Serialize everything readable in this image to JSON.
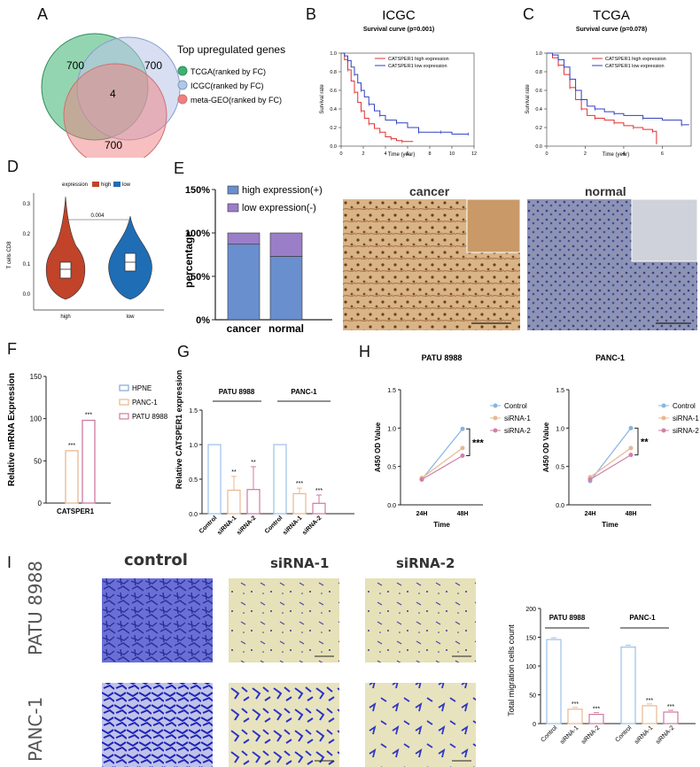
{
  "panels": {
    "A": {
      "letter": "A",
      "legend_title": "Top upregulated genes",
      "legend": [
        {
          "label": "TCGA(ranked by FC)",
          "color": "#3cb371"
        },
        {
          "label": "ICGC(ranked by FC)",
          "color": "#9fb7d8"
        },
        {
          "label": "meta-GEO(ranked by FC)",
          "color": "#f08080"
        }
      ],
      "venn": {
        "n1": "700",
        "n2": "700",
        "n3": "700",
        "center": "4"
      }
    },
    "B": {
      "letter": "B",
      "title": "ICGC",
      "subtitle": "Survival curve (p=0.001)",
      "xlabel": "Time (year)",
      "ylabel": "Survival rate",
      "legend": [
        "CATSPER1 high expression",
        "CATSPER1 low expression"
      ],
      "xticks": [
        "0",
        "2",
        "4",
        "6",
        "8",
        "10",
        "12"
      ],
      "yticks": [
        "0.0",
        "0.2",
        "0.4",
        "0.6",
        "0.8",
        "1.0"
      ]
    },
    "C": {
      "letter": "C",
      "title": "TCGA",
      "subtitle": "Survival curve (p=0.078)",
      "xlabel": "Time (year)",
      "ylabel": "Survival rate",
      "legend": [
        "CATSPER1 high expression",
        "CATSPER1 low expression"
      ],
      "xticks": [
        "0",
        "2",
        "4",
        "6"
      ],
      "yticks": [
        "0.0",
        "0.2",
        "0.4",
        "0.6",
        "0.8",
        "1.0"
      ]
    },
    "D": {
      "letter": "D",
      "legend_title": "expression",
      "legend": [
        "high",
        "low"
      ],
      "ylabel": "T cells CD8",
      "pval": "0.004",
      "xticks": [
        "high",
        "low"
      ],
      "yticks": [
        "0.0",
        "0.1",
        "0.2",
        "0.3"
      ]
    },
    "E": {
      "letter": "E",
      "legend": [
        "high expression(+)",
        "low expression(-)"
      ],
      "ylabel": "percentage",
      "yticks": [
        "0%",
        "50%",
        "100%",
        "150%"
      ],
      "categories": [
        "cancer",
        "normal"
      ],
      "ihc_titles": [
        "cancer",
        "normal"
      ]
    },
    "F": {
      "letter": "F",
      "ylabel": "Relative  mRNA Expression",
      "xlabel": "CATSPER1",
      "legend": [
        "HPNE",
        "PANC-1",
        "PATU 8988"
      ],
      "yticks": [
        "0",
        "50",
        "100",
        "150"
      ],
      "sig": [
        "***",
        "***"
      ]
    },
    "G": {
      "letter": "G",
      "ylabel": "Relative CATSPER1 expression",
      "groups": [
        "PATU 8988",
        "PANC-1"
      ],
      "xticks": [
        "Control",
        "siRNA-1",
        "siRNA-2",
        "Control",
        "siRNA-1",
        "siRNA-2"
      ],
      "yticks": [
        "0.0",
        "0.5",
        "1.0",
        "1.5"
      ],
      "sig": [
        "**",
        "**",
        "***",
        "***"
      ]
    },
    "H": {
      "letter": "H",
      "ylabel": "A450 OD Value",
      "xlabel": "Time",
      "titles": [
        "PATU 8988",
        "PANC-1"
      ],
      "legend": [
        "Control",
        "siRNA-1",
        "siRNA-2"
      ],
      "xticks": [
        "24H",
        "48H"
      ],
      "yticks": [
        "0.0",
        "0.5",
        "1.0",
        "1.5"
      ],
      "sig": [
        "***",
        "**"
      ]
    },
    "I": {
      "letter": "I",
      "col_labels": [
        "control",
        "siRNA-1",
        "siRNA-2"
      ],
      "row_labels": [
        "PATU 8988",
        "PANC-1"
      ],
      "ylabel": "Total migration cells count",
      "groups": [
        "PATU 8988",
        "PANC-1"
      ],
      "xticks": [
        "Control",
        "siRNA-1",
        "siRNA-2",
        "Control",
        "siRNA-1",
        "siRNA-2"
      ],
      "yticks": [
        "0",
        "50",
        "100",
        "150",
        "200"
      ],
      "sig": [
        "***",
        "***",
        "***",
        "***"
      ]
    }
  },
  "chart_data": [
    {
      "type": "line",
      "id": "B",
      "series": [
        {
          "name": "CATSPER1 high expression",
          "color": "#e03030",
          "x": [
            0,
            0.3,
            0.6,
            0.9,
            1.2,
            1.5,
            1.8,
            2.1,
            2.5,
            3,
            3.5,
            4,
            4.5,
            5,
            5.5,
            6.5
          ],
          "y": [
            1,
            0.93,
            0.82,
            0.7,
            0.58,
            0.47,
            0.38,
            0.3,
            0.24,
            0.19,
            0.15,
            0.1,
            0.08,
            0.06,
            0.05,
            0.05
          ]
        },
        {
          "name": "CATSPER1 low expression",
          "color": "#3040c0",
          "x": [
            0,
            0.3,
            0.6,
            0.9,
            1.2,
            1.5,
            1.8,
            2.1,
            2.5,
            3,
            3.5,
            4,
            5,
            6,
            7,
            8,
            9,
            10,
            11.5
          ],
          "y": [
            1,
            0.97,
            0.92,
            0.85,
            0.77,
            0.68,
            0.6,
            0.53,
            0.45,
            0.38,
            0.33,
            0.28,
            0.25,
            0.2,
            0.15,
            0.15,
            0.15,
            0.13,
            0.13
          ]
        }
      ]
    },
    {
      "type": "line",
      "id": "C",
      "series": [
        {
          "name": "CATSPER1 high expression",
          "color": "#e03030",
          "x": [
            0,
            0.3,
            0.6,
            0.9,
            1.2,
            1.5,
            1.8,
            2.1,
            2.5,
            3,
            3.5,
            4,
            4.5,
            5,
            5.5,
            5.7
          ],
          "y": [
            1,
            0.95,
            0.87,
            0.77,
            0.63,
            0.5,
            0.4,
            0.33,
            0.3,
            0.28,
            0.25,
            0.22,
            0.2,
            0.18,
            0.16,
            0.02
          ]
        },
        {
          "name": "CATSPER1 low expression",
          "color": "#3040c0",
          "x": [
            0,
            0.3,
            0.6,
            0.9,
            1.2,
            1.5,
            1.8,
            2.1,
            2.5,
            3,
            3.5,
            4,
            5,
            6,
            7,
            7.4
          ],
          "y": [
            1,
            0.98,
            0.93,
            0.85,
            0.72,
            0.6,
            0.5,
            0.43,
            0.4,
            0.37,
            0.35,
            0.33,
            0.3,
            0.28,
            0.23,
            0.23
          ]
        }
      ]
    },
    {
      "type": "bar",
      "id": "E",
      "categories": [
        "cancer",
        "normal"
      ],
      "series": [
        {
          "name": "high expression(+)",
          "values": [
            87,
            73
          ]
        },
        {
          "name": "low expression(-)",
          "values": [
            13,
            27
          ]
        }
      ],
      "ylim": [
        0,
        150
      ]
    },
    {
      "type": "bar",
      "id": "F",
      "categories": [
        "HPNE",
        "PANC-1",
        "PATU 8988"
      ],
      "values": [
        0,
        62,
        98
      ],
      "ylim": [
        0,
        150
      ]
    },
    {
      "type": "bar",
      "id": "G",
      "categories": [
        "Control",
        "siRNA-1",
        "siRNA-2",
        "Control",
        "siRNA-1",
        "siRNA-2"
      ],
      "values": [
        1.0,
        0.34,
        0.35,
        1.0,
        0.29,
        0.15
      ],
      "errors": [
        0,
        0.2,
        0.33,
        0,
        0.08,
        0.12
      ],
      "ylim": [
        0,
        1.5
      ]
    },
    {
      "type": "line",
      "id": "H1",
      "x": [
        "24H",
        "48H"
      ],
      "series": [
        {
          "name": "Control",
          "values": [
            0.33,
            0.99
          ]
        },
        {
          "name": "siRNA-1",
          "values": [
            0.35,
            0.74
          ]
        },
        {
          "name": "siRNA-2",
          "values": [
            0.33,
            0.64
          ]
        }
      ],
      "ylim": [
        0,
        1.5
      ]
    },
    {
      "type": "line",
      "id": "H2",
      "x": [
        "24H",
        "48H"
      ],
      "series": [
        {
          "name": "Control",
          "values": [
            0.31,
            1.0
          ]
        },
        {
          "name": "siRNA-1",
          "values": [
            0.36,
            0.74
          ]
        },
        {
          "name": "siRNA-2",
          "values": [
            0.33,
            0.65
          ]
        }
      ],
      "ylim": [
        0,
        1.5
      ]
    },
    {
      "type": "bar",
      "id": "I",
      "categories": [
        "Control",
        "siRNA-1",
        "siRNA-2",
        "Control",
        "siRNA-1",
        "siRNA-2"
      ],
      "values": [
        146,
        25,
        16,
        133,
        31,
        20
      ],
      "ylim": [
        0,
        200
      ]
    }
  ]
}
